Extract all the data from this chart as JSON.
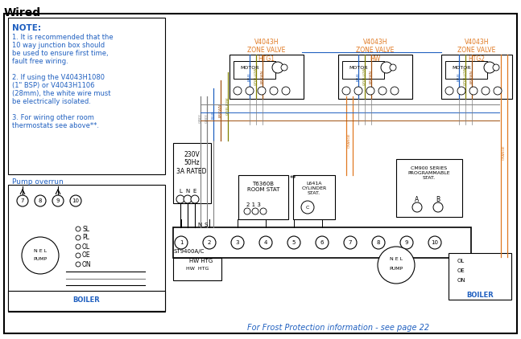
{
  "title": "Wired",
  "bg_color": "#ffffff",
  "border_color": "#000000",
  "note_title": "NOTE:",
  "note_lines": [
    "1. It is recommended that the",
    "10 way junction box should",
    "be used to ensure first time,",
    "fault free wiring.",
    "",
    "2. If using the V4043H1080",
    "(1\" BSP) or V4043H1106",
    "(28mm), the white wire must",
    "be electrically isolated.",
    "",
    "3. For wiring other room",
    "thermostats see above**."
  ],
  "pump_overrun_label": "Pump overrun",
  "frost_text": "For Frost Protection information - see page 22",
  "zone_valve_1_label": "V4043H\nZONE VALVE\nHTG1",
  "zone_valve_2_label": "V4043H\nZONE VALVE\nHW",
  "zone_valve_3_label": "V4043H\nZONE VALVE\nHTG2",
  "motor_label": "MOTOR",
  "power_label": "230V\n50Hz\n3A RATED",
  "room_stat_label": "T6360B\nROOM STAT",
  "cylinder_stat_label": "L641A\nCYLINDER\nSTAT.",
  "cm900_label": "CM900 SERIES\nPROGRAMMABLE\nSTAT.",
  "hw_htg_label": "HW HTG",
  "st9400_label": "ST9400A/C",
  "boiler_label": "BOILER",
  "pump_label": "PUMP",
  "nel_label": "N E L",
  "orange_color": "#e07820",
  "blue_color": "#2060c0",
  "gray_color": "#808080",
  "gyellow_color": "#808000",
  "brown_color": "#a05010",
  "text_color": "#000000"
}
